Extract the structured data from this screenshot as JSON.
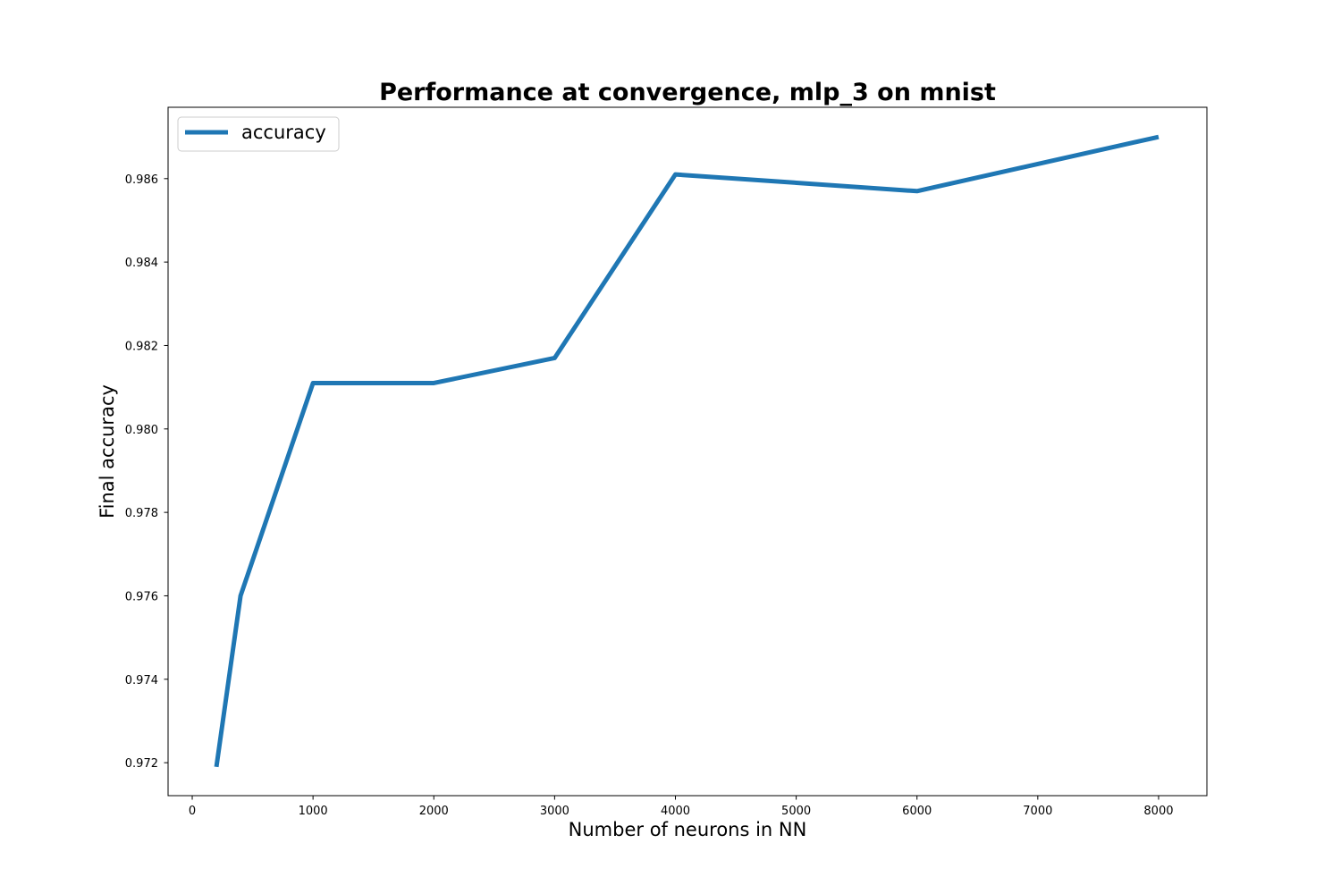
{
  "chart_data": {
    "type": "line",
    "title": "Performance at convergence, mlp_3 on mnist",
    "xlabel": "Number of neurons in NN",
    "ylabel": "Final accuracy",
    "xlim": [
      -200,
      8400
    ],
    "ylim": [
      0.97121,
      0.98771
    ],
    "x_ticks": [
      0,
      1000,
      2000,
      3000,
      4000,
      5000,
      6000,
      7000,
      8000
    ],
    "x_tick_labels": [
      "0",
      "1000",
      "2000",
      "3000",
      "4000",
      "5000",
      "6000",
      "7000",
      "8000"
    ],
    "y_ticks": [
      0.972,
      0.974,
      0.976,
      0.978,
      0.98,
      0.982,
      0.984,
      0.986
    ],
    "y_tick_labels": [
      "0.972",
      "0.974",
      "0.976",
      "0.978",
      "0.980",
      "0.982",
      "0.984",
      "0.986"
    ],
    "grid": false,
    "legend_position": "top-left",
    "series": [
      {
        "name": "accuracy",
        "color": "#1f77b4",
        "x": [
          200,
          400,
          1000,
          2000,
          3000,
          4000,
          6000,
          8000
        ],
        "y": [
          0.9719,
          0.976,
          0.9811,
          0.9811,
          0.9817,
          0.9861,
          0.9857,
          0.987
        ]
      }
    ]
  }
}
